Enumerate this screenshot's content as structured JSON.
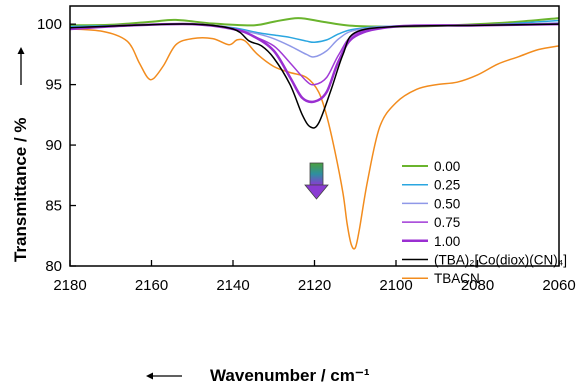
{
  "chart_data": {
    "type": "line",
    "xlabel": "Wavenumber / cm⁻¹",
    "ylabel": "Transmittance / %",
    "xlim": [
      2180,
      2060
    ],
    "ylim": [
      80,
      101.5
    ],
    "x_ticks": [
      2180,
      2160,
      2140,
      2120,
      2100,
      2080,
      2060
    ],
    "y_ticks": [
      80,
      85,
      90,
      95,
      100
    ],
    "x_tick_labels": [
      "2180",
      "2160",
      "2140",
      "2120",
      "2100",
      "2080",
      "2060"
    ],
    "y_tick_labels": [
      "80",
      "85",
      "90",
      "95",
      "100"
    ],
    "x_reversed": true,
    "grid": false,
    "legend_position": "right",
    "annotations": [
      "gradient arrow pointing down at ~2120 cm⁻¹"
    ],
    "series": [
      {
        "name": "0.00",
        "color": "#6ab42d",
        "width": 2,
        "x": [
          2180,
          2170,
          2160,
          2154,
          2145,
          2135,
          2130,
          2124,
          2118,
          2112,
          2105,
          2095,
          2080,
          2070,
          2060
        ],
        "y": [
          99.9,
          99.95,
          100.2,
          100.35,
          100.05,
          99.9,
          100.2,
          100.5,
          100.2,
          99.9,
          99.8,
          99.8,
          100.0,
          100.2,
          100.5
        ]
      },
      {
        "name": "0.25",
        "color": "#2aa6e0",
        "width": 1.5,
        "x": [
          2180,
          2165,
          2150,
          2140,
          2134,
          2130,
          2126,
          2122,
          2120,
          2117,
          2114,
          2110,
          2100,
          2080,
          2060
        ],
        "y": [
          99.8,
          99.9,
          100.0,
          99.7,
          99.3,
          99.1,
          98.9,
          98.6,
          98.5,
          98.7,
          99.2,
          99.6,
          99.85,
          99.9,
          100.3
        ]
      },
      {
        "name": "0.50",
        "color": "#8f98e8",
        "width": 1.5,
        "x": [
          2180,
          2165,
          2150,
          2140,
          2134,
          2130,
          2126,
          2122,
          2120,
          2117,
          2114,
          2110,
          2100,
          2080,
          2060
        ],
        "y": [
          99.7,
          99.9,
          100.0,
          99.6,
          99.2,
          98.8,
          98.2,
          97.5,
          97.3,
          97.8,
          98.8,
          99.5,
          99.85,
          99.9,
          100.1
        ]
      },
      {
        "name": "0.75",
        "color": "#a13ad6",
        "width": 1.5,
        "x": [
          2180,
          2165,
          2150,
          2140,
          2135,
          2130,
          2126,
          2122,
          2120,
          2117,
          2114,
          2110,
          2100,
          2080,
          2060
        ],
        "y": [
          99.7,
          99.9,
          100.0,
          99.6,
          99.0,
          98.2,
          96.8,
          95.3,
          95.0,
          95.6,
          97.5,
          99.2,
          99.8,
          99.9,
          100.0
        ]
      },
      {
        "name": "1.00",
        "color": "#9a2fd1",
        "width": 2.5,
        "x": [
          2180,
          2165,
          2150,
          2140,
          2135,
          2130,
          2126,
          2123,
          2120,
          2117,
          2114,
          2110,
          2100,
          2080,
          2060
        ],
        "y": [
          99.6,
          99.9,
          100.0,
          99.6,
          99.0,
          97.8,
          95.6,
          93.9,
          93.6,
          94.4,
          97.0,
          99.0,
          99.8,
          99.9,
          100.0
        ]
      },
      {
        "name": "(TBA)₂[Co(diox)(CN)₄]",
        "color": "#000000",
        "width": 1.5,
        "x": [
          2180,
          2165,
          2150,
          2140,
          2136,
          2133,
          2130,
          2126,
          2123,
          2121,
          2119,
          2116,
          2113,
          2110,
          2100,
          2080,
          2060
        ],
        "y": [
          99.7,
          99.9,
          100.0,
          99.6,
          98.6,
          98.2,
          97.2,
          95.0,
          92.5,
          91.5,
          91.8,
          94.5,
          97.5,
          99.3,
          99.8,
          99.9,
          100.0
        ]
      },
      {
        "name": "TBACN",
        "color": "#f28c1e",
        "width": 1.5,
        "x": [
          2180,
          2172,
          2166,
          2163,
          2161,
          2159.5,
          2157,
          2154,
          2150,
          2145,
          2141,
          2139,
          2137,
          2134,
          2130,
          2126,
          2122,
          2119,
          2117,
          2115,
          2113,
          2112,
          2111,
          2110,
          2109,
          2107,
          2104,
          2100,
          2095,
          2090,
          2085,
          2080,
          2075,
          2070,
          2065,
          2060
        ],
        "y": [
          99.6,
          99.4,
          98.6,
          96.8,
          95.6,
          95.5,
          96.6,
          98.3,
          98.8,
          98.8,
          98.3,
          98.7,
          98.6,
          97.5,
          96.5,
          96.0,
          95.6,
          94.4,
          92.4,
          89.5,
          86.0,
          83.5,
          81.8,
          81.5,
          83.0,
          87.0,
          91.5,
          93.5,
          94.6,
          95.0,
          95.2,
          95.8,
          96.7,
          97.3,
          97.9,
          98.2
        ]
      }
    ]
  }
}
